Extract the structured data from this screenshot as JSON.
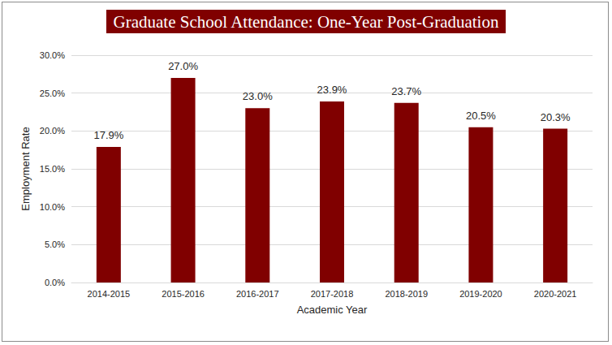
{
  "chart_data": {
    "type": "bar",
    "title": "Graduate School Attendance: One-Year Post-Graduation",
    "x_label": "Academic Year",
    "y_label": "Employment Rate",
    "categories": [
      "2014-2015",
      "2015-2016",
      "2016-2017",
      "2017-2018",
      "2018-2019",
      "2019-2020",
      "2020-2021"
    ],
    "values": [
      17.9,
      27.0,
      23.0,
      23.9,
      23.7,
      20.5,
      20.3
    ],
    "value_labels": [
      "17.9%",
      "27.0%",
      "23.0%",
      "23.9%",
      "23.7%",
      "20.5%",
      "20.3%"
    ],
    "color": "#800000",
    "ylim": [
      0,
      30
    ],
    "yticks": [
      {
        "value": 0,
        "label": "0.0%"
      },
      {
        "value": 5,
        "label": "5.0%"
      },
      {
        "value": 10,
        "label": "10.0%"
      },
      {
        "value": 15,
        "label": "15.0%"
      },
      {
        "value": 20,
        "label": "20.0%"
      },
      {
        "value": 25,
        "label": "25.0%"
      },
      {
        "value": 30,
        "label": "30.0%"
      }
    ],
    "grid": true,
    "data_labels": true
  }
}
